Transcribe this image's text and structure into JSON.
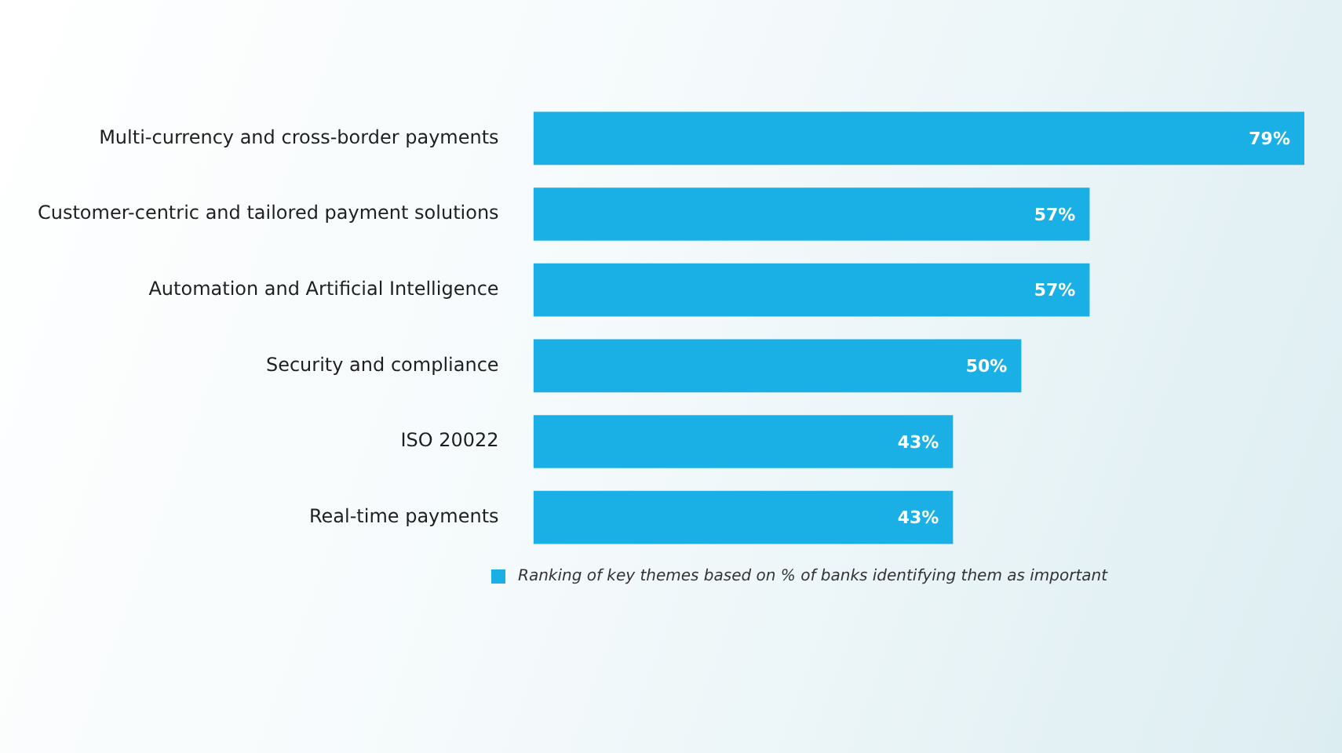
{
  "chart_data": {
    "type": "bar",
    "orientation": "horizontal",
    "categories": [
      "Multi-currency and cross-border payments",
      "Customer-centric and tailored payment solutions",
      "Automation and Artificial Intelligence",
      "Security and compliance",
      "ISO 20022",
      "Real-time payments"
    ],
    "series": [
      {
        "name": "Ranking of key themes based on % of banks identifying them as important",
        "color": "#1ab0e6",
        "values": [
          79,
          57,
          57,
          50,
          43,
          43
        ],
        "value_labels": [
          "79%",
          "57%",
          "57%",
          "50%",
          "43%",
          "43%"
        ]
      }
    ],
    "xlim": [
      0,
      79
    ],
    "tick_labels": "y",
    "legend": "bottom"
  }
}
